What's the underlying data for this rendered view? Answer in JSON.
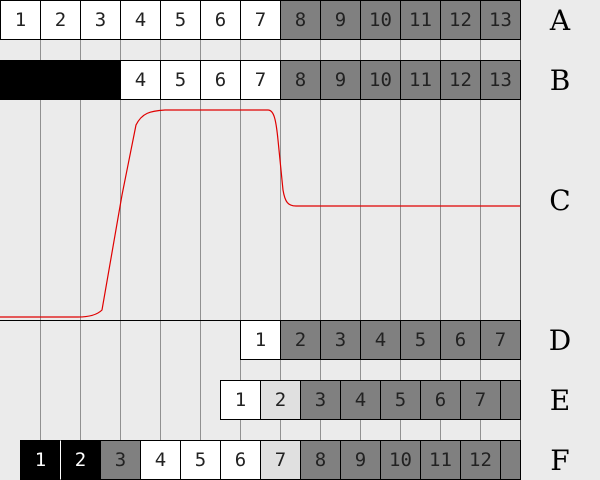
{
  "rows": [
    {
      "label": "A",
      "cells": [
        [
          "1",
          "w"
        ],
        [
          "2",
          "w"
        ],
        [
          "3",
          "w"
        ],
        [
          "4",
          "w"
        ],
        [
          "5",
          "w"
        ],
        [
          "6",
          "w"
        ],
        [
          "7",
          "w"
        ],
        [
          "8",
          "d"
        ],
        [
          "9",
          "d"
        ],
        [
          "10",
          "d"
        ],
        [
          "11",
          "d"
        ],
        [
          "12",
          "d"
        ],
        [
          "13",
          "d"
        ]
      ],
      "offset": 0
    },
    {
      "label": "B",
      "cells": [
        [
          "",
          "k"
        ],
        [
          "",
          "k"
        ],
        [
          "",
          "k"
        ],
        [
          "4",
          "w"
        ],
        [
          "5",
          "w"
        ],
        [
          "6",
          "w"
        ],
        [
          "7",
          "w"
        ],
        [
          "8",
          "d"
        ],
        [
          "9",
          "d"
        ],
        [
          "10",
          "d"
        ],
        [
          "11",
          "d"
        ],
        [
          "12",
          "d"
        ],
        [
          "13",
          "d"
        ]
      ],
      "offset": 0,
      "mergeBlack": true
    },
    {
      "label": "C"
    },
    {
      "label": "D",
      "cells": [
        [
          "1",
          "w"
        ],
        [
          "2",
          "d"
        ],
        [
          "3",
          "d"
        ],
        [
          "4",
          "d"
        ],
        [
          "5",
          "d"
        ],
        [
          "6",
          "d"
        ],
        [
          "7",
          "d"
        ]
      ],
      "offset": 6
    },
    {
      "label": "E",
      "cells": [
        [
          "1",
          "w"
        ],
        [
          "2",
          "l"
        ],
        [
          "3",
          "d"
        ],
        [
          "4",
          "d"
        ],
        [
          "5",
          "d"
        ],
        [
          "6",
          "d"
        ],
        [
          "7",
          "d"
        ],
        [
          "",
          "d"
        ]
      ],
      "offset": 5.5
    },
    {
      "label": "F",
      "cells": [
        [
          "1",
          "k"
        ],
        [
          "2",
          "k"
        ],
        [
          "3",
          "d"
        ],
        [
          "4",
          "w"
        ],
        [
          "5",
          "w"
        ],
        [
          "6",
          "w"
        ],
        [
          "7",
          "l"
        ],
        [
          "8",
          "d"
        ],
        [
          "9",
          "d"
        ],
        [
          "10",
          "d"
        ],
        [
          "11",
          "d"
        ],
        [
          "12",
          "d"
        ],
        [
          "",
          "d"
        ]
      ],
      "offset": 0.5
    }
  ],
  "colors": {
    "signal": "#e00000",
    "dark": "#808080",
    "light": "#e0e0e0"
  }
}
